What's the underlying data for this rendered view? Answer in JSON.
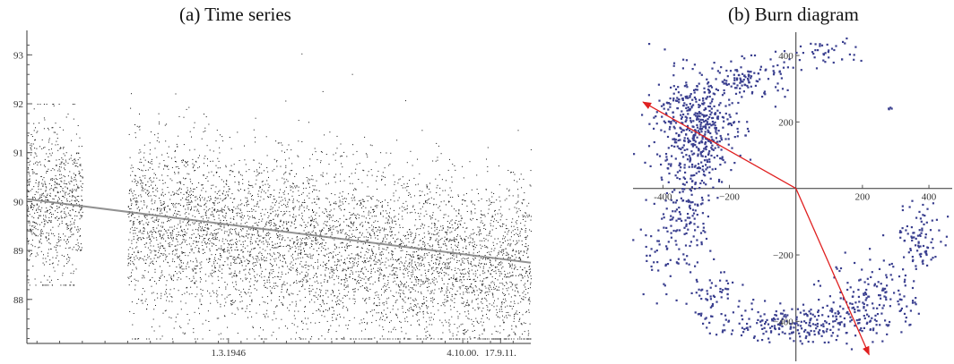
{
  "chart_data": [
    {
      "type": "scatter",
      "title": "(a) Time series",
      "subtitle": "",
      "xlabel": "",
      "ylabel": "",
      "x_tick_labels": [
        "1.3.1946",
        "4.10.00.",
        "17.9.11."
      ],
      "y_ticks": [
        88,
        89,
        90,
        91,
        92,
        93
      ],
      "ylim": [
        87.1,
        93.5
      ],
      "grid": false,
      "legend": "none",
      "colors": {
        "points": "#111111",
        "trend": "#808080"
      },
      "segments": [
        {
          "x_range": [
            0.0,
            0.11
          ],
          "mean": 90.0,
          "spread": 0.75,
          "min": 88.3,
          "max": 92.0
        },
        {
          "x_range": [
            0.2,
            1.0
          ],
          "mean": 89.5,
          "spread": 0.85,
          "min": 87.2,
          "max": 93.4
        }
      ],
      "trend_line": {
        "x": [
          0.0,
          1.0
        ],
        "y": [
          90.05,
          88.75
        ]
      }
    },
    {
      "type": "scatter",
      "title": "(b) Burn diagram",
      "subtitle": "",
      "xlabel": "",
      "ylabel": "",
      "x_ticks": [
        -400,
        -200,
        200,
        400
      ],
      "x_tick_labels": [
        "-400",
        "−200",
        "200",
        "400"
      ],
      "y_ticks": [
        -400,
        -200,
        200,
        400
      ],
      "y_tick_labels": [
        "−400",
        "−200",
        "200",
        "400"
      ],
      "xlim": [
        -490,
        470
      ],
      "ylim": [
        -520,
        470
      ],
      "grid": false,
      "legend": "none",
      "colors": {
        "points": "#3a3f8f",
        "arrows": "#e02020"
      },
      "arrows": [
        {
          "from": [
            0,
            0
          ],
          "to": [
            -460,
            260
          ]
        },
        {
          "from": [
            0,
            0
          ],
          "to": [
            220,
            -500
          ]
        }
      ],
      "point_clusters": [
        {
          "center": [
            -300,
            180
          ],
          "count": 500,
          "sx": 60,
          "sy": 80
        },
        {
          "center": [
            -150,
            330
          ],
          "count": 120,
          "sx": 60,
          "sy": 30
        },
        {
          "center": [
            -330,
            -60
          ],
          "count": 120,
          "sx": 40,
          "sy": 70
        },
        {
          "center": [
            -380,
            -180
          ],
          "count": 60,
          "sx": 60,
          "sy": 50
        },
        {
          "center": [
            -250,
            -330
          ],
          "count": 60,
          "sx": 60,
          "sy": 40
        },
        {
          "center": [
            -20,
            -410
          ],
          "count": 220,
          "sx": 110,
          "sy": 25
        },
        {
          "center": [
            230,
            -330
          ],
          "count": 180,
          "sx": 70,
          "sy": 60
        },
        {
          "center": [
            380,
            -150
          ],
          "count": 90,
          "sx": 40,
          "sy": 50
        },
        {
          "center": [
            80,
            410
          ],
          "count": 40,
          "sx": 60,
          "sy": 20
        },
        {
          "center": [
            280,
            240
          ],
          "count": 4,
          "sx": 8,
          "sy": 6
        }
      ]
    }
  ]
}
